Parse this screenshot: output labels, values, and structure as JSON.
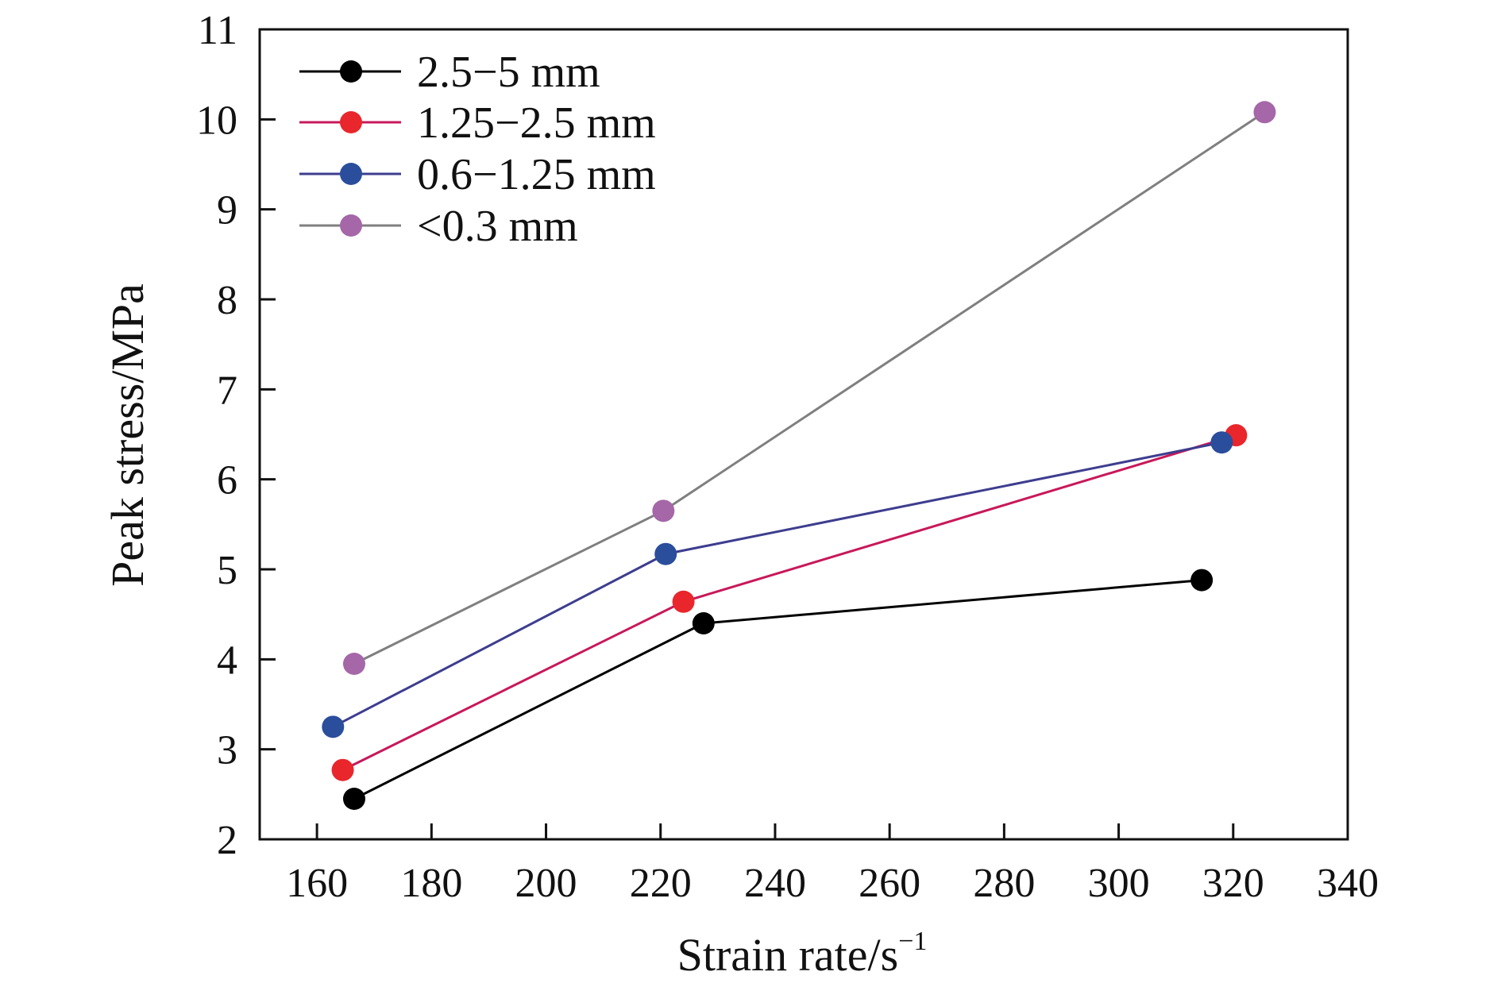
{
  "chart_data": {
    "type": "line",
    "title": "",
    "xlabel": "Strain rate/s",
    "xlabel_superscript": "−1",
    "ylabel": "Peak stress/MPa",
    "xlim": [
      150,
      340
    ],
    "ylim": [
      2,
      11
    ],
    "xticks": [
      160,
      180,
      200,
      220,
      240,
      260,
      280,
      300,
      320,
      340
    ],
    "yticks": [
      2,
      3,
      4,
      5,
      6,
      7,
      8,
      9,
      10,
      11
    ],
    "grid": false,
    "legend_position": "top-left",
    "series": [
      {
        "name": "2.5−5 mm",
        "color": "#000000",
        "line_color": "#000000",
        "x": [
          166.5,
          227.5,
          314.5
        ],
        "y": [
          2.45,
          4.4,
          4.88
        ]
      },
      {
        "name": "1.25−2.5 mm",
        "color": "#e8262c",
        "line_color": "#c8185a",
        "x": [
          164.5,
          224.0,
          320.5
        ],
        "y": [
          2.77,
          4.64,
          6.49
        ]
      },
      {
        "name": "0.6−1.25 mm",
        "color": "#2a4d9c",
        "line_color": "#3d3d8f",
        "x": [
          162.8,
          220.9,
          318.0
        ],
        "y": [
          3.25,
          5.17,
          6.41
        ]
      },
      {
        "name": "<0.3 mm",
        "color": "#a567a8",
        "line_color": "#7f7f7f",
        "x": [
          166.5,
          220.5,
          325.5
        ],
        "y": [
          3.95,
          5.65,
          10.08
        ]
      }
    ]
  }
}
